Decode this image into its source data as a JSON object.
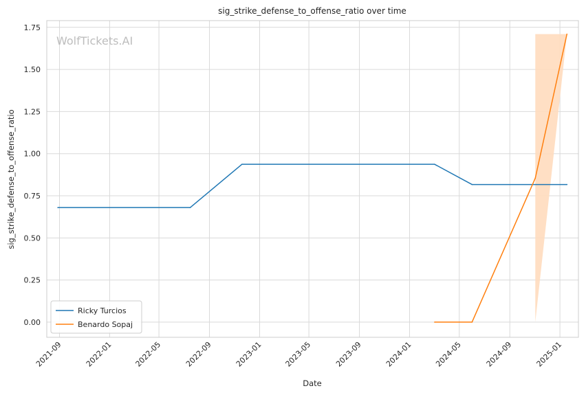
{
  "watermark": "WolfTickets.AI",
  "chart_data": {
    "type": "line",
    "title": "sig_strike_defense_to_offense_ratio over time",
    "xlabel": "Date",
    "ylabel": "sig_strike_defense_to_offense_ratio",
    "x_ticks": [
      "2021-09",
      "2022-01",
      "2022-05",
      "2022-09",
      "2023-01",
      "2023-05",
      "2023-09",
      "2024-01",
      "2024-05",
      "2024-09",
      "2025-01"
    ],
    "y_ticks": [
      "0.00",
      "0.25",
      "0.50",
      "0.75",
      "1.00",
      "1.25",
      "1.50",
      "1.75"
    ],
    "xlim": [
      "2021-08-01",
      "2025-02-15"
    ],
    "ylim": [
      -0.09,
      1.79
    ],
    "grid": true,
    "legend_position": "lower-left",
    "series": [
      {
        "name": "Ricky Turcios",
        "color": "#1f77b4",
        "points": [
          {
            "x": "2021-08-28",
            "y": 0.68
          },
          {
            "x": "2022-07-16",
            "y": 0.68
          },
          {
            "x": "2022-11-19",
            "y": 0.937
          },
          {
            "x": "2024-03-02",
            "y": 0.937
          },
          {
            "x": "2024-06-01",
            "y": 0.817
          },
          {
            "x": "2025-01-18",
            "y": 0.817
          }
        ]
      },
      {
        "name": "Benardo Sopaj",
        "color": "#ff7f0e",
        "points": [
          {
            "x": "2024-03-02",
            "y": 0.0
          },
          {
            "x": "2024-06-01",
            "y": 0.0
          },
          {
            "x": "2024-11-02",
            "y": 0.855
          },
          {
            "x": "2025-01-18",
            "y": 1.71
          }
        ],
        "band": [
          {
            "x": "2024-11-02",
            "low": 0.0,
            "high": 1.71
          },
          {
            "x": "2025-01-18",
            "low": 1.71,
            "high": 1.71
          }
        ],
        "band_color": "#ffdcbe"
      }
    ]
  }
}
